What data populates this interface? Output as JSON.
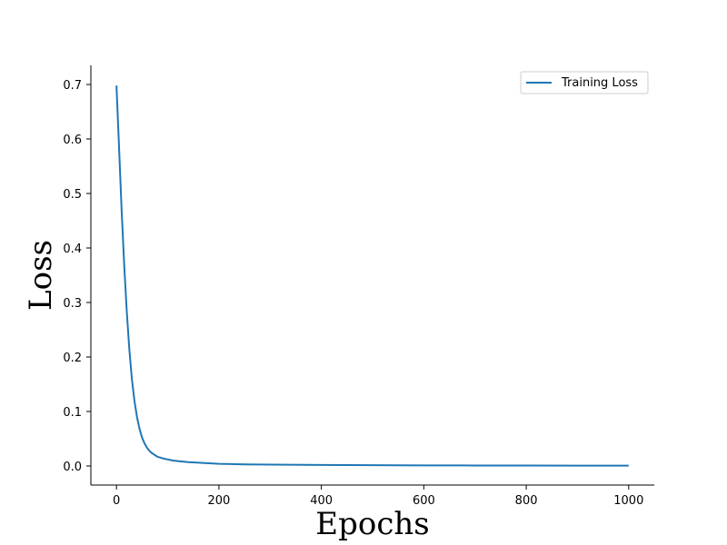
{
  "chart_data": {
    "type": "line",
    "title": "",
    "xlabel": "Epochs",
    "ylabel": "Loss",
    "xlim": [
      -50,
      1050
    ],
    "ylim": [
      -0.035,
      0.735
    ],
    "xticks": [
      0,
      200,
      400,
      600,
      800,
      1000
    ],
    "xtick_labels": [
      "0",
      "200",
      "400",
      "600",
      "800",
      "1000"
    ],
    "yticks": [
      0.0,
      0.1,
      0.2,
      0.3,
      0.4,
      0.5,
      0.6,
      0.7
    ],
    "ytick_labels": [
      "0.0",
      "0.1",
      "0.2",
      "0.3",
      "0.4",
      "0.5",
      "0.6",
      "0.7"
    ],
    "grid": false,
    "legend_position": "top-right",
    "series": [
      {
        "name": "Training Loss",
        "color": "#1f77b4",
        "x": [
          0,
          5,
          10,
          15,
          20,
          25,
          30,
          35,
          40,
          45,
          50,
          55,
          60,
          65,
          70,
          75,
          80,
          90,
          100,
          110,
          120,
          140,
          160,
          180,
          200,
          250,
          300,
          400,
          500,
          600,
          700,
          800,
          900,
          1000
        ],
        "y": [
          0.698,
          0.585,
          0.47,
          0.37,
          0.285,
          0.215,
          0.16,
          0.12,
          0.09,
          0.068,
          0.052,
          0.041,
          0.033,
          0.027,
          0.023,
          0.02,
          0.017,
          0.014,
          0.012,
          0.01,
          0.009,
          0.007,
          0.006,
          0.005,
          0.004,
          0.003,
          0.0025,
          0.0018,
          0.0014,
          0.0011,
          0.0009,
          0.0008,
          0.0007,
          0.0006
        ]
      }
    ]
  }
}
